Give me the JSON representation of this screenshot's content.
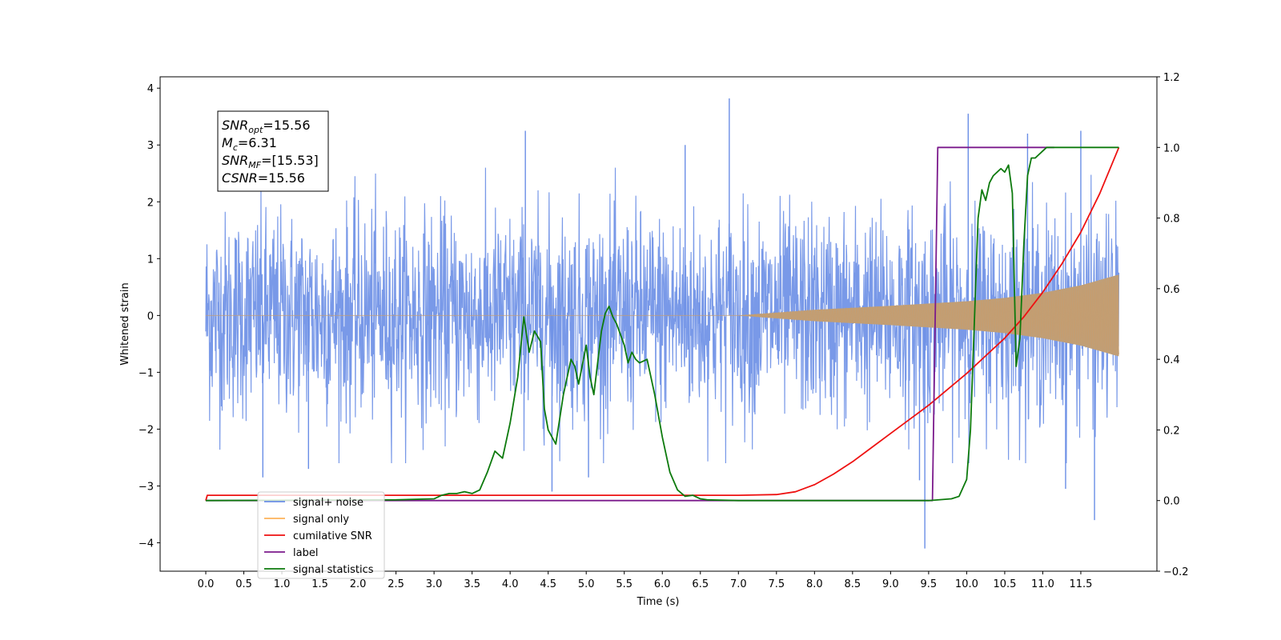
{
  "chart_data": {
    "type": "line",
    "xlabel": "Time (s)",
    "ylabel": "Whitened strain",
    "xlim": [
      -0.6,
      12.5
    ],
    "ylim": [
      -4.5,
      4.2
    ],
    "y2lim": [
      -0.2,
      1.2
    ],
    "x_ticks": [
      "0.0",
      "0.5",
      "1.0",
      "1.5",
      "2.0",
      "2.5",
      "3.0",
      "3.5",
      "4.0",
      "4.5",
      "5.0",
      "5.5",
      "6.0",
      "6.5",
      "7.0",
      "7.5",
      "8.0",
      "8.5",
      "9.0",
      "9.5",
      "10.0",
      "10.5",
      "11.0",
      "11.5"
    ],
    "y_ticks": [
      "4",
      "3",
      "2",
      "1",
      "0",
      "−1",
      "−2",
      "−3",
      "−4"
    ],
    "y2_ticks": [
      "1.2",
      "1.0",
      "0.8",
      "0.6",
      "0.4",
      "0.2",
      "0.0",
      "−0.2"
    ],
    "legend_position": "lower-left",
    "grid": false,
    "annotation": {
      "lines": [
        {
          "base": "SNR",
          "sub": "opt",
          "value": "=15.56"
        },
        {
          "base": "M",
          "sub": "c",
          "value": "=6.31"
        },
        {
          "base": "SNR",
          "sub": "MF",
          "value": "=[15.53]"
        },
        {
          "base": "CSNR",
          "sub": "",
          "value": "=15.56"
        }
      ]
    },
    "series": [
      {
        "name": "signal+ noise",
        "color": "#6a8ee6",
        "axis": "left",
        "style": "noise-band",
        "duration": 12.0,
        "sigma": 0.9,
        "spikes": [
          [
            6.88,
            3.82
          ],
          [
            10.02,
            3.55
          ],
          [
            9.45,
            -4.1
          ],
          [
            11.68,
            -3.6
          ],
          [
            4.2,
            3.25
          ],
          [
            10.8,
            3.2
          ],
          [
            11.5,
            3.25
          ],
          [
            4.55,
            -3.1
          ],
          [
            5.03,
            -2.85
          ],
          [
            0.75,
            -2.85
          ],
          [
            1.35,
            -2.7
          ],
          [
            6.3,
            3.0
          ],
          [
            9.38,
            -2.9
          ],
          [
            11.3,
            -3.05
          ]
        ]
      },
      {
        "name": "signal only",
        "color": "#fdb25a",
        "axis": "left",
        "style": "chirp",
        "envelope": [
          [
            0.0,
            0.0
          ],
          [
            7.0,
            0.0
          ],
          [
            7.5,
            0.05
          ],
          [
            8.0,
            0.1
          ],
          [
            9.0,
            0.17
          ],
          [
            10.0,
            0.25
          ],
          [
            10.5,
            0.31
          ],
          [
            11.0,
            0.4
          ],
          [
            11.5,
            0.53
          ],
          [
            12.0,
            0.72
          ]
        ]
      },
      {
        "name": "cumilative SNR",
        "color": "#ee1111",
        "axis": "right",
        "x": [
          0.0,
          0.02,
          1.0,
          2.0,
          3.0,
          4.0,
          5.0,
          6.0,
          7.0,
          7.5,
          7.75,
          8.0,
          8.25,
          8.5,
          8.75,
          9.0,
          9.25,
          9.5,
          9.75,
          10.0,
          10.25,
          10.5,
          10.75,
          11.0,
          11.25,
          11.5,
          11.75,
          12.0
        ],
        "values": [
          0.0,
          0.015,
          0.015,
          0.015,
          0.015,
          0.015,
          0.015,
          0.015,
          0.015,
          0.017,
          0.025,
          0.045,
          0.075,
          0.11,
          0.15,
          0.19,
          0.23,
          0.27,
          0.315,
          0.36,
          0.41,
          0.46,
          0.52,
          0.59,
          0.67,
          0.76,
          0.87,
          1.0
        ]
      },
      {
        "name": "label",
        "color": "#7b1a8c",
        "axis": "right",
        "x": [
          0.0,
          9.55,
          9.62,
          11.15
        ],
        "values": [
          0.0,
          0.0,
          1.0,
          1.0
        ]
      },
      {
        "name": "signal statistics",
        "color": "#0d7a0d",
        "axis": "right",
        "x": [
          0.0,
          2.5,
          3.0,
          3.1,
          3.2,
          3.3,
          3.4,
          3.5,
          3.6,
          3.7,
          3.8,
          3.9,
          4.0,
          4.1,
          4.18,
          4.25,
          4.32,
          4.4,
          4.45,
          4.5,
          4.6,
          4.7,
          4.8,
          4.85,
          4.9,
          5.0,
          5.05,
          5.1,
          5.2,
          5.25,
          5.3,
          5.35,
          5.4,
          5.45,
          5.5,
          5.55,
          5.6,
          5.65,
          5.7,
          5.8,
          5.9,
          6.0,
          6.1,
          6.2,
          6.3,
          6.4,
          6.5,
          6.6,
          7.0,
          9.5,
          9.8,
          9.9,
          10.0,
          10.05,
          10.1,
          10.15,
          10.2,
          10.25,
          10.3,
          10.35,
          10.4,
          10.45,
          10.5,
          10.55,
          10.6,
          10.65,
          10.7,
          10.75,
          10.8,
          10.85,
          10.9,
          10.95,
          11.0,
          11.05,
          11.1,
          11.2,
          11.5,
          11.8,
          12.0
        ],
        "values": [
          0.0,
          0.002,
          0.005,
          0.015,
          0.02,
          0.02,
          0.025,
          0.02,
          0.03,
          0.08,
          0.14,
          0.12,
          0.22,
          0.35,
          0.52,
          0.42,
          0.48,
          0.45,
          0.26,
          0.2,
          0.16,
          0.3,
          0.4,
          0.38,
          0.33,
          0.44,
          0.35,
          0.3,
          0.48,
          0.53,
          0.55,
          0.52,
          0.5,
          0.47,
          0.44,
          0.39,
          0.42,
          0.4,
          0.39,
          0.4,
          0.3,
          0.18,
          0.08,
          0.03,
          0.012,
          0.015,
          0.005,
          0.002,
          0.0,
          0.0,
          0.005,
          0.012,
          0.06,
          0.2,
          0.5,
          0.8,
          0.88,
          0.85,
          0.9,
          0.92,
          0.93,
          0.94,
          0.93,
          0.95,
          0.87,
          0.38,
          0.46,
          0.72,
          0.92,
          0.97,
          0.97,
          0.98,
          0.99,
          1.0,
          1.0,
          1.0,
          1.0,
          1.0,
          1.0
        ]
      }
    ]
  }
}
